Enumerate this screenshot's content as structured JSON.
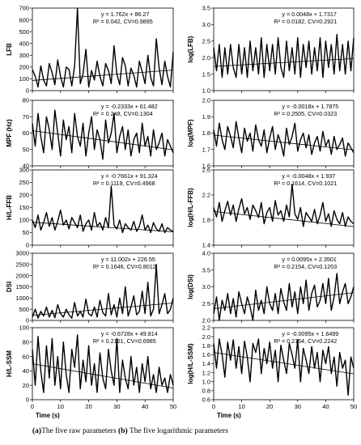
{
  "caption": {
    "part_a_label": "(a)",
    "part_a_text": "The five raw parameters",
    "part_b_label": "(b)",
    "part_b_text": "The five logarithmic parameters"
  },
  "chart_data": [
    {
      "type": "line",
      "column": "a",
      "row": 0,
      "ylabel": "LFB",
      "xlabel": "",
      "ylim": [
        0,
        700
      ],
      "yticks": [
        "0",
        "100",
        "200",
        "300",
        "400",
        "500",
        "600",
        "700"
      ],
      "xlim": [
        0,
        50
      ],
      "xticks": [
        "0",
        "10",
        "20",
        "30",
        "40",
        "50"
      ],
      "show_xticks": false,
      "equation": "y = 1.762x + 86.27",
      "stats": "R² = 0.042,  CV=0.9895",
      "trend": {
        "slope": 1.762,
        "intercept": 86.27
      },
      "series": [
        {
          "values": [
            180,
            120,
            30,
            210,
            90,
            40,
            230,
            150,
            50,
            260,
            120,
            30,
            200,
            180,
            40,
            210,
            700,
            60,
            140,
            350,
            30,
            170,
            90,
            250,
            120,
            40,
            230,
            170,
            60,
            380,
            140,
            50,
            280,
            210,
            40,
            190,
            130,
            30,
            250,
            160,
            60,
            300,
            110,
            40,
            440,
            190,
            50,
            250,
            120,
            30,
            330
          ]
        }
      ]
    },
    {
      "type": "line",
      "column": "a",
      "row": 1,
      "ylabel": "MPF (Hz)",
      "xlabel": "",
      "ylim": [
        40,
        80
      ],
      "yticks": [
        "40",
        "50",
        "60",
        "70",
        "80"
      ],
      "xlim": [
        0,
        50
      ],
      "xticks": [
        "0",
        "10",
        "20",
        "30",
        "40",
        "50"
      ],
      "show_xticks": false,
      "equation": "y = -0.2333x + 61.482",
      "stats": "R² = 0.248, CV=0.1304",
      "trend": {
        "slope": -0.2333,
        "intercept": 61.482
      },
      "series": [
        {
          "values": [
            66,
            52,
            72,
            58,
            48,
            70,
            62,
            50,
            74,
            60,
            46,
            68,
            56,
            64,
            48,
            72,
            58,
            52,
            66,
            46,
            60,
            70,
            50,
            62,
            56,
            44,
            68,
            54,
            60,
            72,
            48,
            58,
            64,
            50,
            62,
            46,
            56,
            60,
            48,
            66,
            52,
            58,
            46,
            62,
            50,
            54,
            60,
            46,
            56,
            52,
            48
          ]
        }
      ]
    },
    {
      "type": "line",
      "column": "a",
      "row": 2,
      "ylabel": "H/L-FFB",
      "xlabel": "",
      "ylim": [
        0,
        300
      ],
      "yticks": [
        "0",
        "50",
        "100",
        "150",
        "200",
        "250",
        "300"
      ],
      "xlim": [
        0,
        50
      ],
      "xticks": [
        "0",
        "10",
        "20",
        "30",
        "40",
        "50"
      ],
      "show_xticks": false,
      "equation": "y = -0.7661x + 91.324",
      "stats": "R² = 0.1119, CV=0.4968",
      "trend": {
        "slope": -0.7661,
        "intercept": 91.324
      },
      "series": [
        {
          "values": [
            100,
            70,
            120,
            60,
            90,
            130,
            75,
            110,
            60,
            95,
            140,
            80,
            100,
            65,
            110,
            90,
            70,
            120,
            55,
            85,
            100,
            60,
            130,
            75,
            90,
            60,
            110,
            70,
            235,
            80,
            65,
            100,
            50,
            85,
            70,
            60,
            95,
            55,
            75,
            120,
            60,
            80,
            50,
            90,
            65,
            55,
            85,
            50,
            70,
            60,
            55
          ]
        }
      ]
    },
    {
      "type": "line",
      "column": "a",
      "row": 3,
      "ylabel": "DSI",
      "xlabel": "",
      "ylim": [
        0,
        3000
      ],
      "yticks": [
        "0",
        "500",
        "1000",
        "1500",
        "2000",
        "2500",
        "3000"
      ],
      "xlim": [
        0,
        50
      ],
      "xticks": [
        "0",
        "10",
        "20",
        "30",
        "40",
        "50"
      ],
      "show_xticks": false,
      "equation": "y = 11.002x + 226.55",
      "stats": "R² = 0.1646, CV=0.8012",
      "trend": {
        "slope": 11.002,
        "intercept": 226.55
      },
      "series": [
        {
          "values": [
            150,
            500,
            100,
            400,
            200,
            600,
            150,
            450,
            120,
            700,
            300,
            150,
            500,
            250,
            100,
            800,
            200,
            400,
            150,
            950,
            300,
            200,
            600,
            150,
            900,
            350,
            200,
            1200,
            250,
            700,
            150,
            1000,
            300,
            1500,
            200,
            600,
            1100,
            250,
            400,
            1300,
            300,
            1700,
            200,
            500,
            2500,
            300,
            700,
            1200,
            300,
            500,
            1000
          ]
        }
      ]
    },
    {
      "type": "line",
      "column": "a",
      "row": 4,
      "ylabel": "H/L-SSM",
      "xlabel": "Time (s)",
      "ylim": [
        0,
        100
      ],
      "yticks": [
        "0",
        "20",
        "40",
        "60",
        "80",
        "100"
      ],
      "xlim": [
        0,
        50
      ],
      "xticks": [
        "0",
        "10",
        "20",
        "30",
        "40",
        "50"
      ],
      "show_xticks": true,
      "equation": "y = -0.6728x + 49.814",
      "stats": "R² = 0.2161, CV=0.6985",
      "trend": {
        "slope": -0.6728,
        "intercept": 49.814
      },
      "series": [
        {
          "values": [
            70,
            20,
            88,
            40,
            10,
            75,
            30,
            85,
            20,
            60,
            15,
            80,
            35,
            10,
            70,
            45,
            90,
            15,
            55,
            25,
            75,
            20,
            50,
            10,
            65,
            30,
            15,
            70,
            40,
            20,
            85,
            10,
            55,
            30,
            15,
            60,
            20,
            45,
            10,
            50,
            25,
            60,
            15,
            35,
            10,
            45,
            20,
            30,
            10,
            35,
            20
          ]
        }
      ]
    },
    {
      "type": "line",
      "column": "b",
      "row": 0,
      "ylabel": "log(LFB)",
      "xlabel": "",
      "ylim": [
        1.0,
        3.5
      ],
      "yticks": [
        "1.0",
        "1.5",
        "2.0",
        "2.5",
        "3.0",
        "3.5"
      ],
      "xlim": [
        0,
        50
      ],
      "xticks": [
        "0",
        "10",
        "20",
        "30",
        "40",
        "50"
      ],
      "show_xticks": false,
      "equation": "y = 0.0048x + 1.7317",
      "stats": "R² = 0.0182,  CV=0.2921",
      "trend": {
        "slope": 0.0048,
        "intercept": 1.7317
      },
      "series": [
        {
          "values": [
            2.3,
            1.6,
            2.4,
            1.4,
            2.3,
            1.5,
            2.4,
            1.7,
            1.4,
            2.4,
            1.5,
            2.3,
            1.4,
            2.5,
            1.6,
            2.3,
            1.5,
            2.6,
            1.4,
            2.4,
            1.6,
            2.4,
            1.5,
            2.6,
            1.7,
            1.4,
            2.5,
            1.6,
            2.3,
            1.5,
            2.6,
            1.4,
            2.4,
            1.7,
            2.5,
            1.5,
            2.3,
            1.6,
            2.6,
            1.4,
            2.5,
            1.7,
            2.4,
            1.5,
            2.7,
            1.6,
            2.4,
            1.5,
            2.5,
            1.6,
            2.6
          ]
        }
      ]
    },
    {
      "type": "line",
      "column": "b",
      "row": 1,
      "ylabel": "log(MPF)",
      "xlabel": "",
      "ylim": [
        1.6,
        2.0
      ],
      "yticks": [
        "1.6",
        "1.7",
        "1.8",
        "1.9",
        "2.0"
      ],
      "xlim": [
        0,
        50
      ],
      "xticks": [
        "0",
        "10",
        "20",
        "30",
        "40",
        "50"
      ],
      "show_xticks": false,
      "equation": "y = -0.0018x + 1.7875",
      "stats": "R² = 0.2505, CV=0.0323",
      "trend": {
        "slope": -0.0018,
        "intercept": 1.7875
      },
      "series": [
        {
          "values": [
            1.82,
            1.72,
            1.86,
            1.76,
            1.7,
            1.84,
            1.78,
            1.71,
            1.87,
            1.77,
            1.68,
            1.83,
            1.75,
            1.8,
            1.69,
            1.85,
            1.76,
            1.72,
            1.82,
            1.68,
            1.77,
            1.84,
            1.7,
            1.79,
            1.74,
            1.66,
            1.83,
            1.73,
            1.78,
            1.86,
            1.69,
            1.76,
            1.8,
            1.71,
            1.79,
            1.67,
            1.74,
            1.78,
            1.69,
            1.81,
            1.72,
            1.76,
            1.67,
            1.78,
            1.7,
            1.73,
            1.77,
            1.66,
            1.74,
            1.71,
            1.68
          ]
        }
      ]
    },
    {
      "type": "line",
      "column": "b",
      "row": 2,
      "ylabel": "log(H/L-FFB)",
      "xlabel": "",
      "ylim": [
        1.4,
        2.6
      ],
      "yticks": [
        "1.4",
        "1.8",
        "2.2",
        "2.6"
      ],
      "xlim": [
        0,
        50
      ],
      "xticks": [
        "0",
        "10",
        "20",
        "30",
        "40",
        "50"
      ],
      "show_xticks": false,
      "equation": "y = -0.0048x + 1.937",
      "stats": "R² = 0.1614, CV=0.1021",
      "trend": {
        "slope": -0.0048,
        "intercept": 1.937
      },
      "series": [
        {
          "values": [
            2.0,
            1.85,
            2.08,
            1.78,
            1.95,
            2.1,
            1.88,
            2.04,
            1.78,
            1.98,
            2.14,
            1.9,
            2.0,
            1.81,
            2.04,
            1.95,
            1.84,
            2.08,
            1.74,
            1.92,
            2.0,
            1.78,
            2.11,
            1.88,
            1.95,
            1.78,
            2.04,
            1.85,
            2.37,
            1.9,
            1.81,
            2.0,
            1.7,
            1.92,
            1.85,
            1.78,
            1.97,
            1.74,
            1.88,
            2.08,
            1.78,
            1.9,
            1.7,
            1.95,
            1.81,
            1.74,
            1.92,
            1.7,
            1.85,
            1.78,
            1.74
          ]
        }
      ]
    },
    {
      "type": "line",
      "column": "b",
      "row": 3,
      "ylabel": "log(DSI)",
      "xlabel": "",
      "ylim": [
        2.0,
        4.0
      ],
      "yticks": [
        "2.0",
        "2.5",
        "3.0",
        "3.5",
        "4.0"
      ],
      "xlim": [
        0,
        50
      ],
      "xticks": [
        "0",
        "10",
        "20",
        "30",
        "40",
        "50"
      ],
      "show_xticks": false,
      "equation": "y = 0.0095x + 2.3501",
      "stats": "R² = 0.2154, CV=0.1203",
      "trend": {
        "slope": 0.0095,
        "intercept": 2.3501
      },
      "series": [
        {
          "values": [
            2.2,
            2.7,
            2.0,
            2.6,
            2.3,
            2.8,
            2.2,
            2.65,
            2.1,
            2.85,
            2.5,
            2.2,
            2.7,
            2.4,
            2.0,
            2.9,
            2.3,
            2.6,
            2.2,
            3.0,
            2.5,
            2.3,
            2.8,
            2.2,
            2.95,
            2.55,
            2.3,
            3.1,
            2.4,
            2.85,
            2.2,
            3.0,
            2.5,
            3.2,
            2.3,
            2.8,
            3.05,
            2.4,
            2.6,
            3.1,
            2.5,
            3.25,
            2.3,
            2.7,
            3.4,
            2.5,
            2.85,
            3.1,
            2.5,
            2.7,
            3.0
          ]
        }
      ]
    },
    {
      "type": "line",
      "column": "b",
      "row": 4,
      "ylabel": "log(H/L-SSM)",
      "xlabel": "Time (s)",
      "ylim": [
        0.6,
        2.2
      ],
      "yticks": [
        "0.6",
        "0.8",
        "1.0",
        "1.2",
        "1.4",
        "1.6",
        "1.8",
        "2.0",
        "2.2"
      ],
      "xlim": [
        0,
        50
      ],
      "xticks": [
        "0",
        "10",
        "20",
        "30",
        "40",
        "50"
      ],
      "show_xticks": true,
      "equation": "y = -0.0095x + 1.6499",
      "stats": "R² = 0.2154, CV=0.2242",
      "trend": {
        "slope": -0.0095,
        "intercept": 1.6499
      },
      "series": [
        {
          "values": [
            1.85,
            1.3,
            1.95,
            1.6,
            1.1,
            1.88,
            1.48,
            1.93,
            1.3,
            1.78,
            1.18,
            1.9,
            1.55,
            1.0,
            1.85,
            1.65,
            1.95,
            1.18,
            1.74,
            1.4,
            1.88,
            1.3,
            1.7,
            1.0,
            1.81,
            1.48,
            1.18,
            1.85,
            1.6,
            1.3,
            1.93,
            1.0,
            1.74,
            1.48,
            1.18,
            1.78,
            1.3,
            1.65,
            1.0,
            1.7,
            1.4,
            1.78,
            1.18,
            1.55,
            0.9,
            1.65,
            1.3,
            1.48,
            0.7,
            1.55,
            1.3
          ]
        }
      ]
    }
  ]
}
